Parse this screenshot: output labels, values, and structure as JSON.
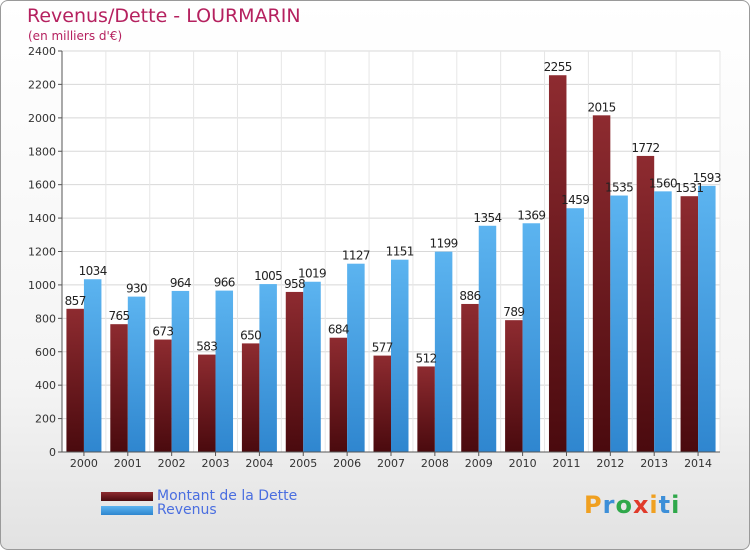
{
  "header": {
    "title": "Revenus/Dette - LOURMARIN",
    "subtitle": "(en milliers d'€)"
  },
  "chart_data": {
    "type": "bar",
    "title": "Revenus/Dette - LOURMARIN",
    "subtitle": "(en milliers d'€)",
    "categories": [
      "2000",
      "2001",
      "2002",
      "2003",
      "2004",
      "2005",
      "2006",
      "2007",
      "2008",
      "2009",
      "2010",
      "2011",
      "2012",
      "2013",
      "2014"
    ],
    "series": [
      {
        "name": "Montant de la Dette",
        "color": "#7a1f23",
        "values": [
          857,
          765,
          673,
          583,
          650,
          958,
          684,
          577,
          512,
          886,
          789,
          2255,
          2015,
          1772,
          1531
        ]
      },
      {
        "name": "Revenus",
        "color": "#4aa3e6",
        "values": [
          1034,
          930,
          964,
          966,
          1005,
          1019,
          1127,
          1151,
          1199,
          1354,
          1369,
          1459,
          1535,
          1560,
          1593
        ]
      }
    ],
    "ylim": [
      0,
      2400
    ],
    "yticks": [
      0,
      200,
      400,
      600,
      800,
      1000,
      1200,
      1400,
      1600,
      1800,
      2000,
      2200,
      2400
    ],
    "grid": true,
    "legend": "bottom-left",
    "data_labels": true
  },
  "legend": {
    "items": [
      {
        "label": "Montant de la Dette",
        "color": "#7a1f23"
      },
      {
        "label": "Revenus",
        "color": "#4aa3e6"
      }
    ]
  },
  "logo": {
    "text": "Proxiti",
    "colors": [
      "#f0a020",
      "#3d8fd8",
      "#2fa84a",
      "#e03a2a",
      "#f0a020",
      "#3d8fd8",
      "#2fa84a"
    ]
  }
}
